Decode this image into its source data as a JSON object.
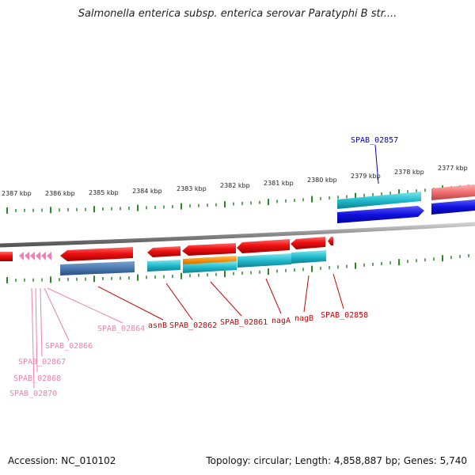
{
  "title": "Salmonella enterica subsp. enterica serovar Paratyphi B str....",
  "footer": {
    "accession": "Accession: NC_010102",
    "topology": "Topology: circular; Length: 4,858,887 bp; Genes: 5,740"
  },
  "scale_labels": [
    "2387 kbp",
    "2386 kbp",
    "2385 kbp",
    "2384 kbp",
    "2383 kbp",
    "2382 kbp",
    "2381 kbp",
    "2380 kbp",
    "2379 kbp",
    "2378 kbp",
    "2377 kbp"
  ],
  "gene_labels": [
    {
      "name": "SPAB_02857",
      "color": "#0000bb"
    },
    {
      "name": "asnB",
      "color": "#cc0000"
    },
    {
      "name": "SPAB_02862",
      "color": "#cc0000"
    },
    {
      "name": "SPAB_02861",
      "color": "#cc0000"
    },
    {
      "name": "nagA",
      "color": "#cc0000"
    },
    {
      "name": "nagB",
      "color": "#cc0000"
    },
    {
      "name": "SPAB_02858",
      "color": "#cc0000"
    },
    {
      "name": "SPAB_02864",
      "color": "#f080b0"
    },
    {
      "name": "SPAB_02866",
      "color": "#f080b0"
    },
    {
      "name": "SPAB_02867",
      "color": "#f080b0"
    },
    {
      "name": "SPAB_02868",
      "color": "#f080b0"
    },
    {
      "name": "SPAB_02870",
      "color": "#f080b0"
    }
  ],
  "colors": {
    "cds_forward": "#ee1111",
    "cds_reverse": "#1111dd",
    "trna": "#f080b0",
    "rrna": "#22bbcc",
    "misc": "#4a7ab0",
    "other": "#f08800",
    "tick": "#2a8a2a",
    "backbone": "#888888"
  }
}
